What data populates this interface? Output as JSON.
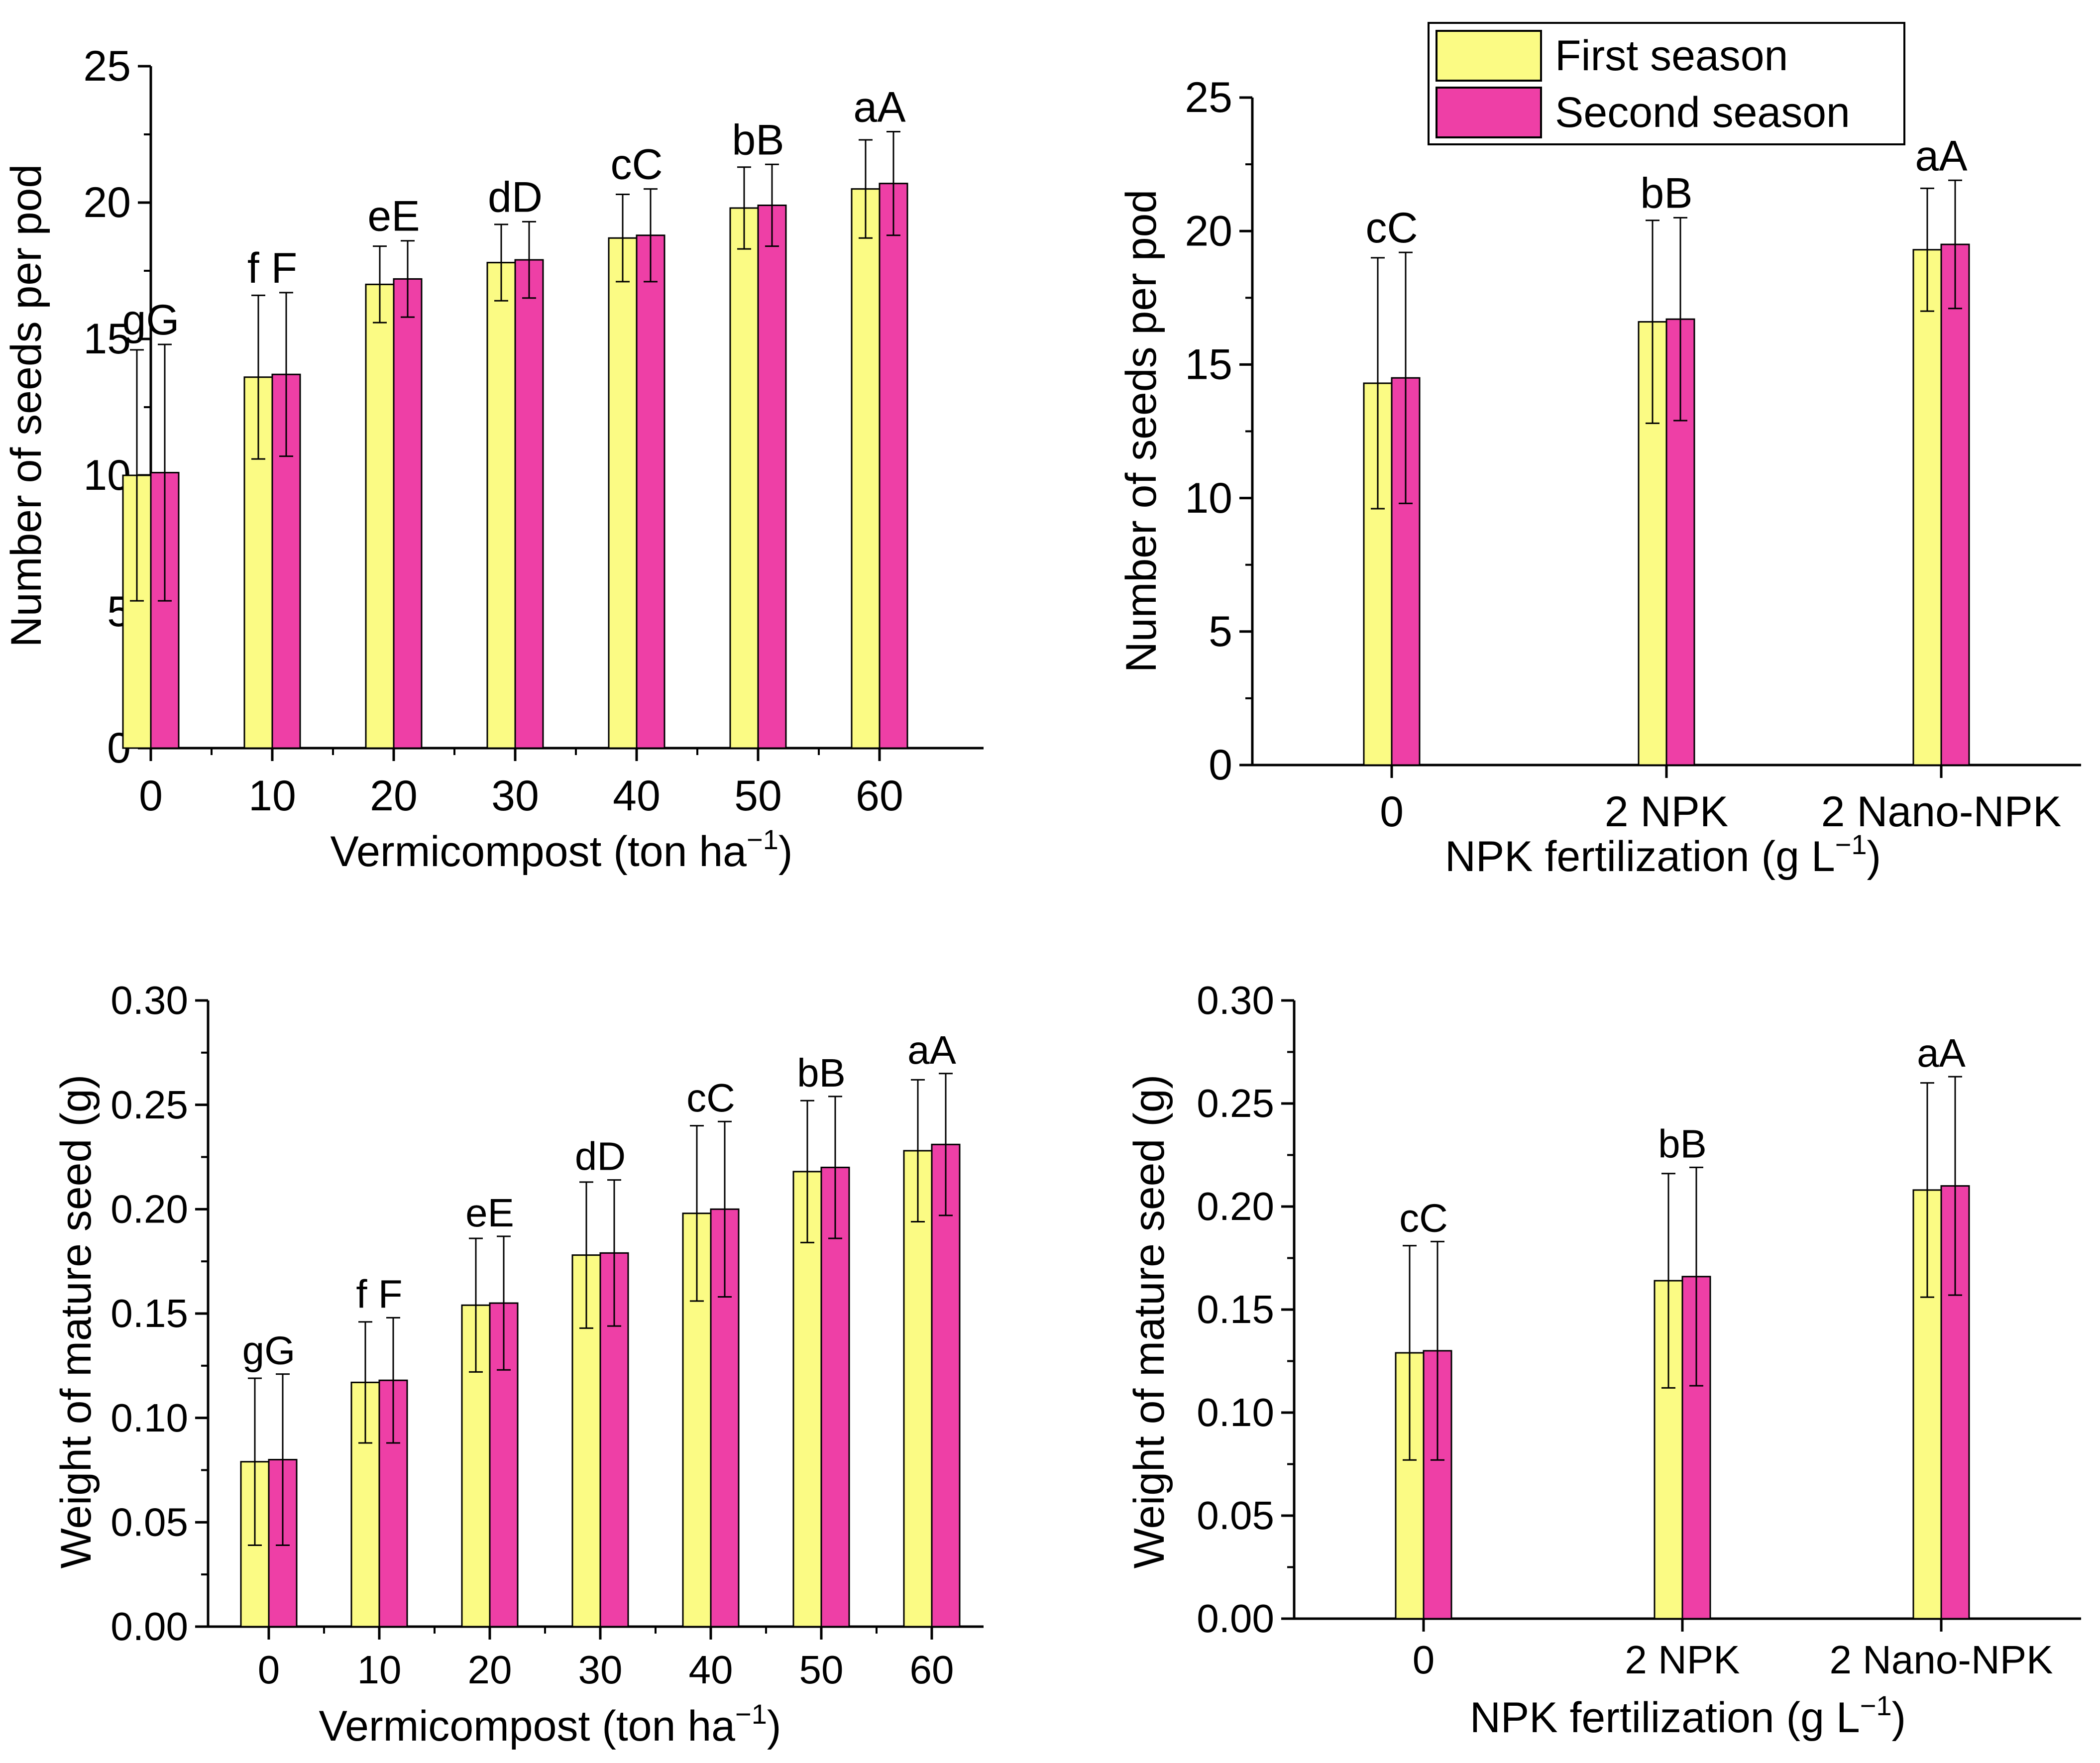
{
  "colors": {
    "first": "#fbfb84",
    "second": "#ee3fa6",
    "axis": "#000000"
  },
  "legend": {
    "placement": "top-center",
    "first_label": "First season",
    "second_label": "Second season"
  },
  "chart_data": [
    {
      "id": "p1",
      "type": "bar",
      "xlabel_main": "Vermicompost (ton ha",
      "xlabel_sup": "−1",
      "xlabel_end": ")",
      "ylabel": "Number of seeds per pod",
      "ylim": [
        0,
        25
      ],
      "yticks": [
        "0",
        "5",
        "10",
        "15",
        "20",
        "25"
      ],
      "categories": [
        "0",
        "10",
        "20",
        "30",
        "40",
        "50",
        "60"
      ],
      "letters": [
        "gG",
        "f F",
        "eE",
        "dD",
        "cC",
        "bB",
        "aA"
      ],
      "series": [
        {
          "name": "First season",
          "values": [
            10.0,
            13.6,
            17.0,
            17.8,
            18.7,
            19.8,
            20.5
          ],
          "errors": [
            4.6,
            3.0,
            1.4,
            1.4,
            1.6,
            1.5,
            1.8
          ]
        },
        {
          "name": "Second season",
          "values": [
            10.1,
            13.7,
            17.2,
            17.9,
            18.8,
            19.9,
            20.7
          ],
          "errors": [
            4.7,
            3.0,
            1.4,
            1.4,
            1.7,
            1.5,
            1.9
          ]
        }
      ]
    },
    {
      "id": "p2",
      "type": "bar",
      "xlabel_main": "NPK fertilization (g L",
      "xlabel_sup": "−1",
      "xlabel_end": ")",
      "ylabel": "Number of seeds per pod",
      "ylim": [
        0,
        25
      ],
      "yticks": [
        "0",
        "5",
        "10",
        "15",
        "20",
        "25"
      ],
      "categories": [
        "0",
        "2 NPK",
        "2 Nano-NPK"
      ],
      "letters": [
        "cC",
        "bB",
        "aA"
      ],
      "series": [
        {
          "name": "First season",
          "values": [
            14.3,
            16.6,
            19.3
          ],
          "errors": [
            4.7,
            3.8,
            2.3
          ]
        },
        {
          "name": "Second season",
          "values": [
            14.5,
            16.7,
            19.5
          ],
          "errors": [
            4.7,
            3.8,
            2.4
          ]
        }
      ]
    },
    {
      "id": "p3",
      "type": "bar",
      "xlabel_main": "Vermicompost (ton ha",
      "xlabel_sup": "−1",
      "xlabel_end": ")",
      "ylabel": "Weight of mature seed (g)",
      "ylim": [
        0,
        0.3
      ],
      "yticks": [
        "0.00",
        "0.05",
        "0.10",
        "0.15",
        "0.20",
        "0.25",
        "0.30"
      ],
      "categories": [
        "0",
        "10",
        "20",
        "30",
        "40",
        "50",
        "60"
      ],
      "letters": [
        "gG",
        "f F",
        "eE",
        "dD",
        "cC",
        "bB",
        "aA"
      ],
      "series": [
        {
          "name": "First season",
          "values": [
            0.079,
            0.117,
            0.154,
            0.178,
            0.198,
            0.218,
            0.228
          ],
          "errors": [
            0.04,
            0.029,
            0.032,
            0.035,
            0.042,
            0.034,
            0.034
          ]
        },
        {
          "name": "Second season",
          "values": [
            0.08,
            0.118,
            0.155,
            0.179,
            0.2,
            0.22,
            0.231
          ],
          "errors": [
            0.041,
            0.03,
            0.032,
            0.035,
            0.042,
            0.034,
            0.034
          ]
        }
      ]
    },
    {
      "id": "p4",
      "type": "bar",
      "xlabel_main": "NPK fertilization (g L",
      "xlabel_sup": "−1",
      "xlabel_end": ")",
      "ylabel": "Weight of mature seed (g)",
      "ylim": [
        0,
        0.3
      ],
      "yticks": [
        "0.00",
        "0.05",
        "0.10",
        "0.15",
        "0.20",
        "0.25",
        "0.30"
      ],
      "categories": [
        "0",
        "2 NPK",
        "2 Nano-NPK"
      ],
      "letters": [
        "cC",
        "bB",
        "aA"
      ],
      "series": [
        {
          "name": "First season",
          "values": [
            0.129,
            0.164,
            0.208
          ],
          "errors": [
            0.052,
            0.052,
            0.052
          ]
        },
        {
          "name": "Second season",
          "values": [
            0.13,
            0.166,
            0.21
          ],
          "errors": [
            0.053,
            0.053,
            0.053
          ]
        }
      ]
    }
  ]
}
